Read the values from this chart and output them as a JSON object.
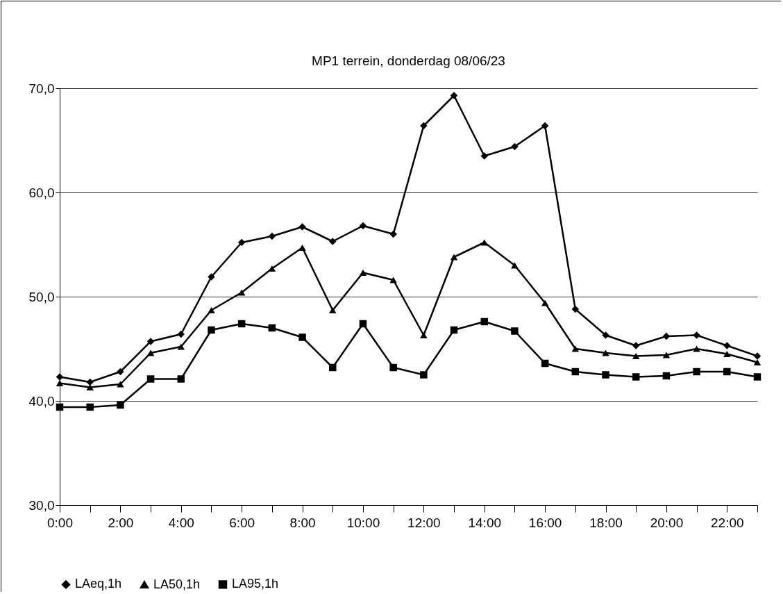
{
  "chart_data": {
    "type": "line",
    "title": "MP1 terrein, donderdag 08/06/23",
    "categories": [
      "0:00",
      null,
      "2:00",
      null,
      "4:00",
      null,
      "6:00",
      null,
      "8:00",
      null,
      "10:00",
      null,
      "12:00",
      null,
      "14:00",
      null,
      "16:00",
      null,
      "18:00",
      null,
      "20:00",
      null,
      "22:00",
      null
    ],
    "series": [
      {
        "name": "LAeq,1h",
        "color": "#000000",
        "marker": "diamond",
        "values": [
          42.3,
          41.8,
          42.8,
          45.7,
          46.4,
          51.9,
          55.2,
          55.8,
          56.7,
          55.3,
          56.8,
          56.0,
          66.4,
          69.3,
          63.5,
          64.4,
          66.4,
          48.8,
          46.3,
          45.3,
          46.2,
          46.3,
          45.3,
          44.3
        ]
      },
      {
        "name": "LA50,1h",
        "color": "#000000",
        "marker": "triangle",
        "values": [
          41.7,
          41.3,
          41.6,
          44.6,
          45.2,
          48.7,
          50.4,
          52.7,
          54.7,
          48.7,
          52.3,
          51.6,
          46.3,
          53.8,
          55.2,
          53.0,
          49.4,
          45.0,
          44.6,
          44.3,
          44.4,
          45.0,
          44.5,
          43.7
        ]
      },
      {
        "name": "LA95,1h",
        "color": "#000000",
        "marker": "square",
        "values": [
          39.4,
          39.4,
          39.6,
          42.1,
          42.1,
          46.8,
          47.4,
          47.0,
          46.1,
          43.2,
          47.4,
          43.2,
          42.5,
          46.8,
          47.6,
          46.7,
          43.6,
          42.8,
          42.5,
          42.3,
          42.4,
          42.8,
          42.8,
          42.3
        ]
      }
    ],
    "ylim": [
      30,
      70
    ],
    "yticks": [
      {
        "value": 30,
        "label": "30,0"
      },
      {
        "value": 40,
        "label": "40,0"
      },
      {
        "value": 50,
        "label": "50,0"
      },
      {
        "value": 60,
        "label": "60,0"
      },
      {
        "value": 70,
        "label": "70,0"
      }
    ],
    "grid": "y",
    "legend": "bottom",
    "line_style": "solid"
  }
}
